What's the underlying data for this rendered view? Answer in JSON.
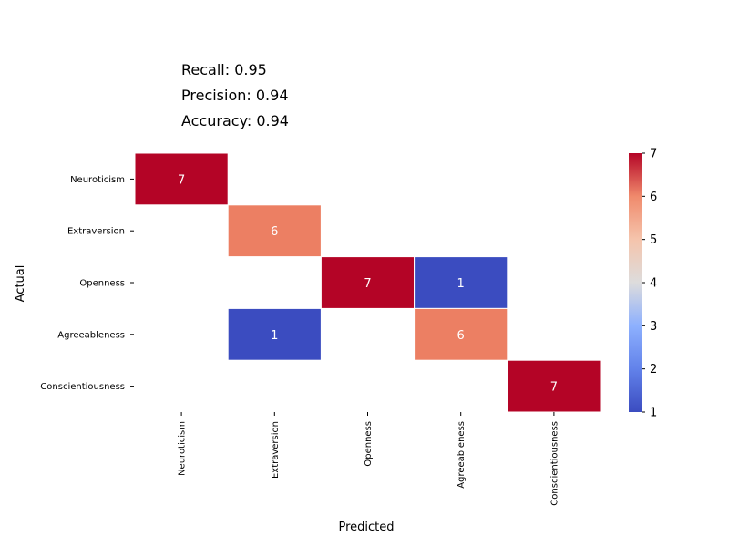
{
  "metrics": {
    "recall": "Recall: 0.95",
    "precision": "Precision: 0.94",
    "accuracy": "Accuracy: 0.94"
  },
  "chart_data": {
    "type": "heatmap",
    "title": "",
    "xlabel": "Predicted",
    "ylabel": "Actual",
    "x_categories": [
      "Neuroticism",
      "Extraversion",
      "Openness",
      "Agreeableness",
      "Conscientiousness"
    ],
    "y_categories": [
      "Neuroticism",
      "Extraversion",
      "Openness",
      "Agreeableness",
      "Conscientiousness"
    ],
    "matrix": [
      [
        7,
        null,
        null,
        null,
        null
      ],
      [
        null,
        6,
        null,
        null,
        null
      ],
      [
        null,
        null,
        7,
        1,
        null
      ],
      [
        null,
        1,
        null,
        6,
        null
      ],
      [
        null,
        null,
        null,
        null,
        7
      ]
    ],
    "colormap": "coolwarm",
    "vmin": 1,
    "vmax": 7,
    "colorbar_ticks": [
      1,
      2,
      3,
      4,
      5,
      6,
      7
    ],
    "cell_colors": {
      "high": "#b40426",
      "six": "#ec7f63",
      "low": "#3b4cc0"
    },
    "grid": false
  }
}
